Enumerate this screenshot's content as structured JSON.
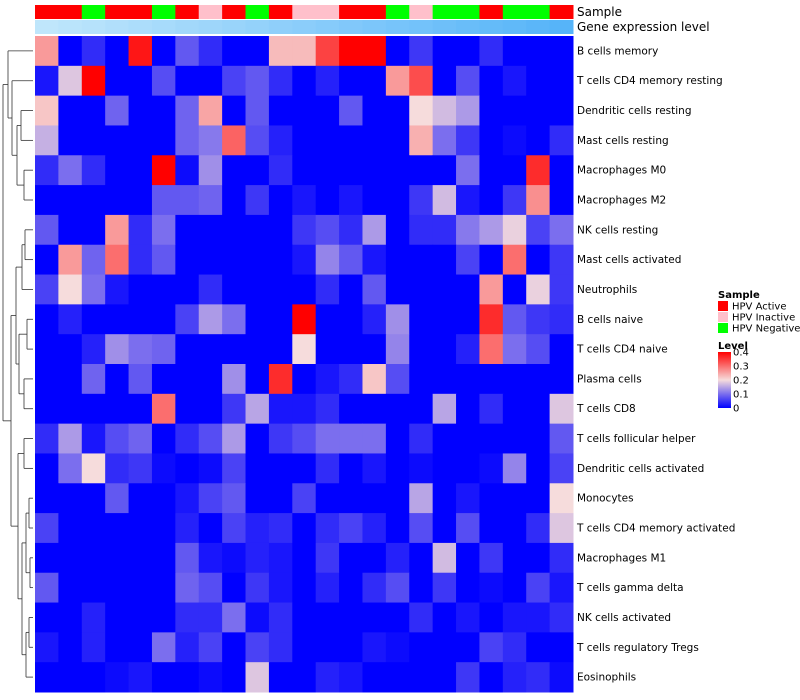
{
  "chart_data": {
    "type": "heatmap",
    "title": "",
    "annotation_labels": {
      "sample": "Sample",
      "gene_expression": "Gene expression level"
    },
    "sample_annotation": [
      "HPV Active",
      "HPV Active",
      "HPV Negative",
      "HPV Active",
      "HPV Active",
      "HPV Negative",
      "HPV Active",
      "HPV Inactive",
      "HPV Active",
      "HPV Negative",
      "HPV Active",
      "HPV Inactive",
      "HPV Inactive",
      "HPV Active",
      "HPV Active",
      "HPV Negative",
      "HPV Inactive",
      "HPV Negative",
      "HPV Negative",
      "HPV Active",
      "HPV Negative",
      "HPV Negative",
      "HPV Active"
    ],
    "gene_expression_annotation": [
      0.0,
      0.045,
      0.09,
      0.136,
      0.182,
      0.227,
      0.273,
      0.318,
      0.364,
      0.409,
      0.455,
      0.5,
      0.545,
      0.591,
      0.636,
      0.682,
      0.727,
      0.773,
      0.818,
      0.864,
      0.909,
      0.955,
      1.0
    ],
    "rows": [
      "B cells memory",
      "T cells CD4 memory resting",
      "Dendritic cells resting",
      "Mast cells resting",
      "Macrophages M0",
      "Macrophages M2",
      "NK cells resting",
      "Mast cells activated",
      "Neutrophils",
      "B cells naive",
      "T cells CD4 naive",
      "Plasma cells",
      "T cells CD8",
      "T cells follicular helper",
      "Dendritic cells activated",
      "Monocytes",
      "T cells CD4 memory activated",
      "Macrophages M1",
      "T cells gamma delta",
      "NK cells activated",
      "T cells regulatory  Tregs",
      "Eosinophils"
    ],
    "values": [
      [
        0.26,
        0,
        0.04,
        0,
        0.38,
        0,
        0.08,
        0.04,
        0,
        0,
        0.23,
        0.23,
        0.34,
        0.4,
        0.4,
        0,
        0.05,
        0,
        0,
        0.04,
        0,
        0,
        0
      ],
      [
        0.02,
        0.18,
        0.4,
        0,
        0,
        0.07,
        0,
        0,
        0.06,
        0.08,
        0.04,
        0,
        0.03,
        0,
        0,
        0.26,
        0.33,
        0,
        0.07,
        0,
        0.02,
        0,
        0
      ],
      [
        0.22,
        0,
        0,
        0.09,
        0,
        0,
        0.09,
        0.25,
        0,
        0.08,
        0,
        0,
        0,
        0.08,
        0,
        0,
        0.2,
        0.17,
        0.14,
        0,
        0,
        0,
        0
      ],
      [
        0.16,
        0,
        0,
        0,
        0,
        0,
        0.09,
        0.11,
        0.31,
        0.07,
        0.03,
        0,
        0,
        0,
        0,
        0,
        0.24,
        0.1,
        0.05,
        0,
        0.01,
        0,
        0.04
      ],
      [
        0.04,
        0.1,
        0.04,
        0,
        0,
        0.4,
        0.01,
        0.13,
        0,
        0,
        0.04,
        0,
        0,
        0,
        0,
        0,
        0,
        0,
        0.1,
        0,
        0,
        0.36,
        0
      ],
      [
        0,
        0,
        0,
        0,
        0,
        0.08,
        0.08,
        0.09,
        0,
        0.05,
        0,
        0.02,
        0,
        0.02,
        0,
        0,
        0.05,
        0.17,
        0.02,
        0,
        0.05,
        0.27,
        0
      ],
      [
        0.08,
        0,
        0,
        0.26,
        0.04,
        0.1,
        0,
        0,
        0,
        0,
        0,
        0.05,
        0.07,
        0.04,
        0.14,
        0,
        0.04,
        0.04,
        0.11,
        0.14,
        0.19,
        0.06,
        0.1
      ],
      [
        0,
        0.26,
        0.09,
        0.3,
        0.04,
        0.08,
        0,
        0,
        0,
        0,
        0,
        0.02,
        0.12,
        0.08,
        0.02,
        0,
        0,
        0,
        0.06,
        0,
        0.3,
        0,
        0.05
      ],
      [
        0.06,
        0.2,
        0.1,
        0.02,
        0,
        0,
        0,
        0.04,
        0,
        0,
        0,
        0,
        0.04,
        0,
        0.08,
        0,
        0,
        0,
        0,
        0.26,
        0,
        0.19,
        0.05
      ],
      [
        0,
        0.03,
        0,
        0,
        0,
        0,
        0.06,
        0.14,
        0.1,
        0,
        0,
        0.4,
        0,
        0,
        0.03,
        0.13,
        0,
        0,
        0,
        0.36,
        0.08,
        0.05,
        0.04
      ],
      [
        0,
        0,
        0.03,
        0.13,
        0.1,
        0.09,
        0,
        0,
        0,
        0,
        0,
        0.2,
        0,
        0,
        0,
        0.12,
        0,
        0,
        0.03,
        0.3,
        0.1,
        0.07,
        0
      ],
      [
        0,
        0,
        0.09,
        0,
        0.08,
        0,
        0,
        0,
        0.13,
        0,
        0.36,
        0,
        0.02,
        0.04,
        0.22,
        0.07,
        0,
        0,
        0,
        0,
        0,
        0,
        0
      ],
      [
        0,
        0,
        0,
        0,
        0,
        0.3,
        0,
        0,
        0.05,
        0.15,
        0.02,
        0.02,
        0.04,
        0,
        0,
        0,
        0,
        0.15,
        0,
        0.04,
        0,
        0,
        0.18
      ],
      [
        0.04,
        0.14,
        0.02,
        0.07,
        0.09,
        0,
        0.04,
        0.07,
        0.14,
        0,
        0.05,
        0.07,
        0.1,
        0.1,
        0.1,
        0,
        0.04,
        0,
        0,
        0,
        0,
        0,
        0.08
      ],
      [
        0,
        0.1,
        0.2,
        0.04,
        0.05,
        0.01,
        0,
        0.01,
        0.06,
        0,
        0,
        0,
        0.04,
        0,
        0.02,
        0,
        0.01,
        0,
        0,
        0.01,
        0.12,
        0,
        0.06
      ],
      [
        0,
        0,
        0,
        0.08,
        0,
        0,
        0.02,
        0.06,
        0.08,
        0,
        0,
        0.06,
        0,
        0,
        0,
        0,
        0.15,
        0,
        0.02,
        0,
        0,
        0,
        0.2
      ],
      [
        0.06,
        0,
        0,
        0,
        0,
        0,
        0.03,
        0,
        0.06,
        0.03,
        0.04,
        0,
        0.04,
        0.06,
        0.03,
        0,
        0.07,
        0,
        0.07,
        0,
        0,
        0.04,
        0.18
      ],
      [
        0,
        0,
        0,
        0,
        0,
        0,
        0.08,
        0.02,
        0.01,
        0.03,
        0.02,
        0,
        0.05,
        0,
        0,
        0.03,
        0,
        0.17,
        0,
        0.05,
        0,
        0,
        0.04
      ],
      [
        0.08,
        0,
        0,
        0,
        0,
        0,
        0.09,
        0.07,
        0,
        0.05,
        0.02,
        0,
        0.03,
        0,
        0.04,
        0.07,
        0,
        0.05,
        0,
        0.01,
        0,
        0.06,
        0.02
      ],
      [
        0,
        0,
        0.03,
        0,
        0,
        0,
        0.04,
        0.04,
        0.1,
        0.01,
        0.04,
        0,
        0,
        0,
        0,
        0,
        0.04,
        0,
        0.02,
        0,
        0.02,
        0.02,
        0.04
      ],
      [
        0.02,
        0,
        0.03,
        0,
        0,
        0.1,
        0.03,
        0.06,
        0,
        0.06,
        0.04,
        0,
        0,
        0,
        0.02,
        0.01,
        0,
        0,
        0,
        0.06,
        0.04,
        0,
        0
      ],
      [
        0,
        0,
        0,
        0.01,
        0.02,
        0,
        0,
        0.01,
        0,
        0.18,
        0,
        0,
        0.03,
        0.02,
        0,
        0,
        0,
        0,
        0.05,
        0,
        0.03,
        0.04,
        0.01
      ]
    ],
    "color_scale": {
      "min": 0,
      "max": 0.4,
      "low_color": "#0000ff",
      "mid_color": "#f6dcdc",
      "high_color": "#ff0000",
      "mid_value": 0.2
    },
    "legend": {
      "sample_title": "Sample",
      "sample_items": [
        {
          "label": "HPV Active",
          "color": "#ff0000"
        },
        {
          "label": "HPV Inactive",
          "color": "#ffc0cb"
        },
        {
          "label": "HPV Negative",
          "color": "#00ff00"
        }
      ],
      "level_title": "Level",
      "level_ticks": [
        "0.4",
        "0.3",
        "0.2",
        "0.1",
        "0"
      ],
      "level_tick_values": [
        0.4,
        0.3,
        0.2,
        0.1,
        0
      ],
      "placement": "right"
    },
    "gene_expression_colors": {
      "low": "#bfe6fb",
      "high": "#56b4f9"
    }
  }
}
